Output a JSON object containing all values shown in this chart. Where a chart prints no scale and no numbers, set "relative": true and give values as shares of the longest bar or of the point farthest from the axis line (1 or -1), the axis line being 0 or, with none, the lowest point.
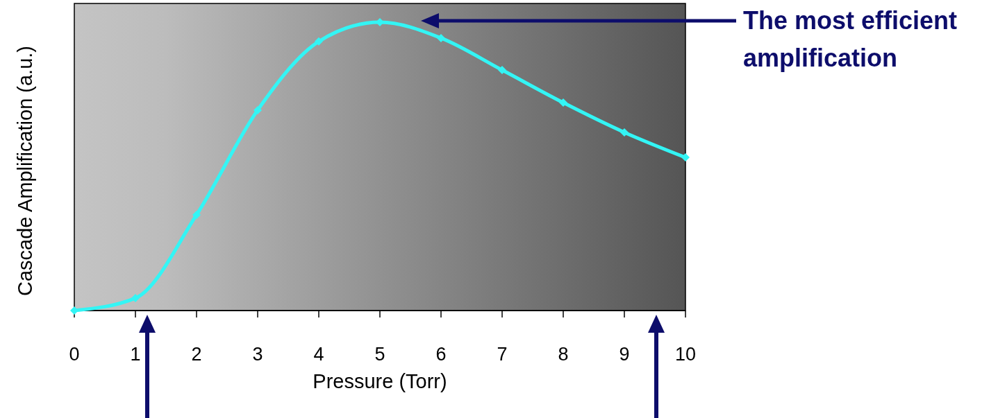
{
  "chart_data": {
    "type": "line",
    "xlabel": "Pressure (Torr)",
    "ylabel": "Cascade Amplification (a.u.)",
    "relative": true,
    "x": [
      0,
      1,
      2,
      3,
      4,
      5,
      6,
      7,
      8,
      9,
      10
    ],
    "series": [
      {
        "color": "#33f5f5",
        "values": [
          0,
          0.043,
          0.332,
          0.695,
          0.933,
          1,
          0.945,
          0.834,
          0.721,
          0.618,
          0.531
        ]
      }
    ],
    "xlim": [
      0,
      10
    ],
    "xticks": [
      0,
      1,
      2,
      3,
      4,
      5,
      6,
      7,
      8,
      9,
      10
    ],
    "marker": "diamond",
    "line_style": "solid",
    "annotations": [
      "The most efficient amplification"
    ]
  }
}
